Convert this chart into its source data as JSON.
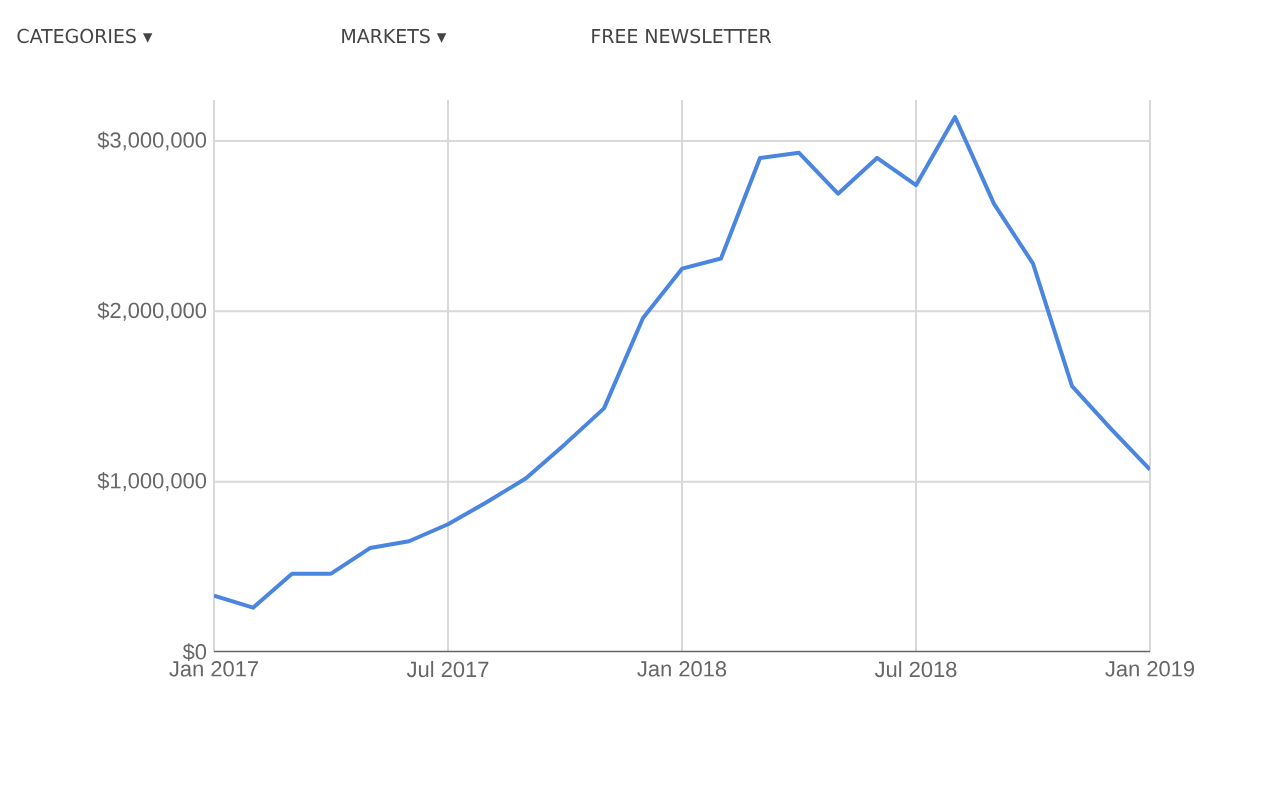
{
  "chart_data": {
    "type": "line",
    "x": [
      "2017-01",
      "2017-02",
      "2017-03",
      "2017-04",
      "2017-05",
      "2017-06",
      "2017-07",
      "2017-08",
      "2017-09",
      "2017-10",
      "2017-11",
      "2017-12",
      "2018-01",
      "2018-02",
      "2018-03",
      "2018-04",
      "2018-05",
      "2018-06",
      "2018-07",
      "2018-08",
      "2018-09",
      "2018-10",
      "2018-11",
      "2018-12",
      "2019-01"
    ],
    "series": [
      {
        "color": "#4a86e0",
        "values": [
          330000,
          260000,
          460000,
          460000,
          610000,
          650000,
          750000,
          880000,
          1020000,
          1220000,
          1430000,
          1960000,
          2250000,
          2310000,
          2900000,
          2930000,
          2690000,
          2900000,
          2740000,
          3140000,
          2630000,
          2280000,
          1560000,
          1310000,
          1070000
        ]
      }
    ],
    "xlim": [
      "2017-01",
      "2019-01"
    ],
    "xticks": [
      {
        "value": "2017-01",
        "label": "Jan 2017"
      },
      {
        "value": "2017-07",
        "label": "Jul 2017"
      },
      {
        "value": "2018-01",
        "label": "Jan 2018"
      },
      {
        "value": "2018-07",
        "label": "Jul 2018"
      },
      {
        "value": "2019-01",
        "label": "Jan 2019"
      }
    ],
    "ylim": [
      0,
      3240000
    ],
    "yticks": [
      {
        "value": 0,
        "label": "$0"
      },
      {
        "value": 1000000,
        "label": "$1,000,000"
      },
      {
        "value": 2000000,
        "label": "$2,000,000"
      },
      {
        "value": 3000000,
        "label": "$3,000,000"
      }
    ],
    "grid": true,
    "marker": "none",
    "line_style": "solid",
    "annotations": [
      "CATEGORIES ▾",
      "MARKETS ▾",
      "FREE NEWSLETTER"
    ]
  }
}
